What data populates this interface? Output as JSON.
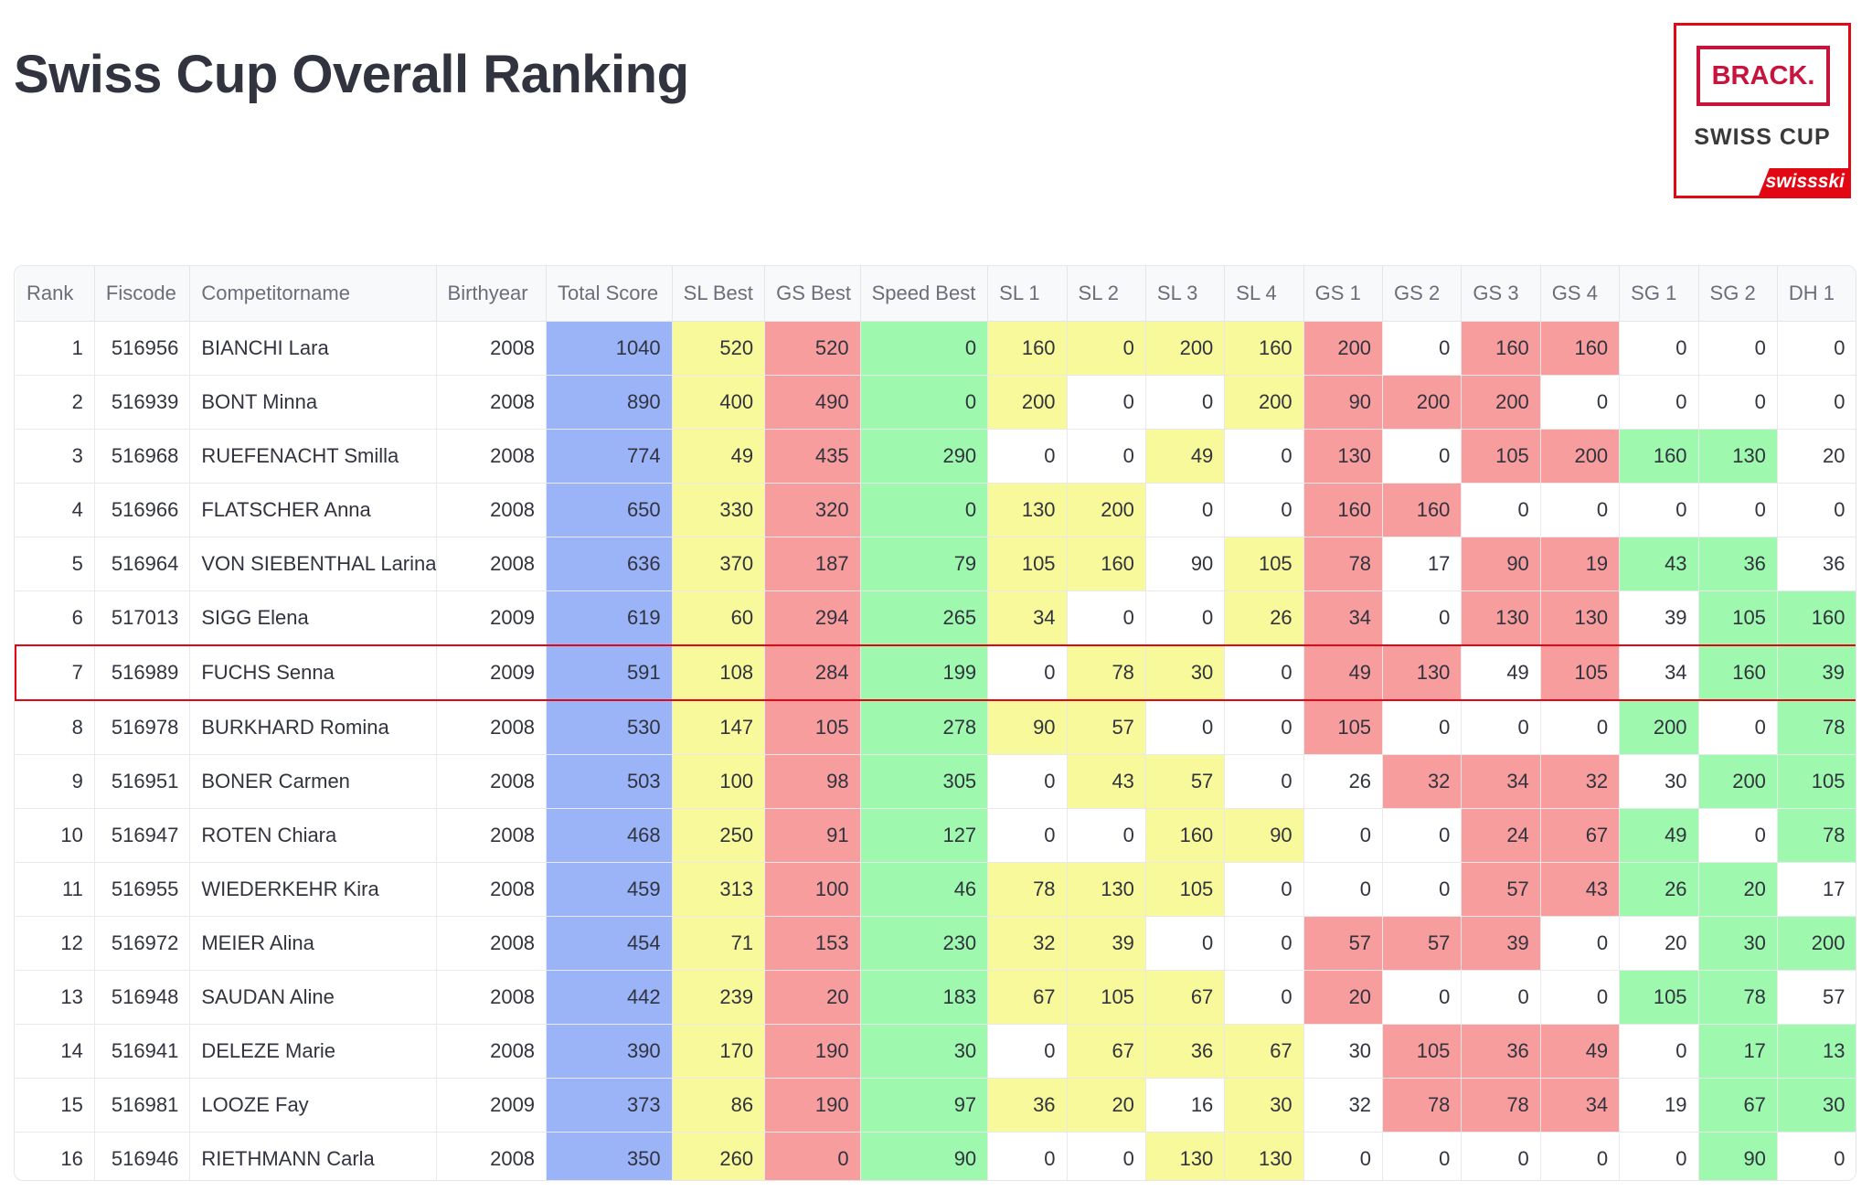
{
  "title": "Swiss Cup Overall Ranking",
  "logo": {
    "brand": "BRACK.",
    "name": "SWISS CUP",
    "sponsor": "swissski",
    "colors": {
      "red": "#e30613",
      "brack": "#c8143c"
    }
  },
  "colors": {
    "total": "#9bb3f7",
    "sl": "#f8f99a",
    "gs": "#f89d9d",
    "speed": "#9ef8ae",
    "selected_border": "#e30613"
  },
  "columns": [
    "Rank",
    "Fiscode",
    "Competitorname",
    "Birthyear",
    "Total Score",
    "SL Best",
    "GS Best",
    "Speed Best",
    "SL 1",
    "SL 2",
    "SL 3",
    "SL 4",
    "GS 1",
    "GS 2",
    "GS 3",
    "GS 4",
    "SG 1",
    "SG 2",
    "DH 1"
  ],
  "selected_rank": 7,
  "rows": [
    {
      "v": [
        1,
        "516956",
        "BIANCHI Lara",
        2008,
        1040,
        520,
        520,
        0,
        160,
        0,
        200,
        160,
        200,
        0,
        160,
        160,
        0,
        0,
        0
      ],
      "hl": "yyyyrwrrwww"
    },
    {
      "v": [
        2,
        "516939",
        "BONT Minna",
        2008,
        890,
        400,
        490,
        0,
        200,
        0,
        0,
        200,
        90,
        200,
        200,
        0,
        0,
        0,
        0
      ],
      "hl": "ywwyrrrwwww"
    },
    {
      "v": [
        3,
        "516968",
        "RUEFENACHT Smilla",
        2008,
        774,
        49,
        435,
        290,
        0,
        0,
        49,
        0,
        130,
        0,
        105,
        200,
        160,
        130,
        20
      ],
      "hl": "wwywrwrrggw"
    },
    {
      "v": [
        4,
        "516966",
        "FLATSCHER Anna",
        2008,
        650,
        330,
        320,
        0,
        130,
        200,
        0,
        0,
        160,
        160,
        0,
        0,
        0,
        0,
        0
      ],
      "hl": "yywwrrwwwww"
    },
    {
      "v": [
        5,
        "516964",
        "VON SIEBENTHAL Larina",
        2008,
        636,
        370,
        187,
        79,
        105,
        160,
        90,
        105,
        78,
        17,
        90,
        19,
        43,
        36,
        36
      ],
      "hl": "yywyrwrrggw"
    },
    {
      "v": [
        6,
        "517013",
        "SIGG Elena",
        2009,
        619,
        60,
        294,
        265,
        34,
        0,
        0,
        26,
        34,
        0,
        130,
        130,
        39,
        105,
        160
      ],
      "hl": "ywwyrwrrwgg"
    },
    {
      "v": [
        7,
        "516989",
        "FUCHS Senna",
        2009,
        591,
        108,
        284,
        199,
        0,
        78,
        30,
        0,
        49,
        130,
        49,
        105,
        34,
        160,
        39
      ],
      "hl": "wyywrrwrwgg"
    },
    {
      "v": [
        8,
        "516978",
        "BURKHARD Romina",
        2008,
        530,
        147,
        105,
        278,
        90,
        57,
        0,
        0,
        105,
        0,
        0,
        0,
        200,
        0,
        78
      ],
      "hl": "yywwrwwwgwg"
    },
    {
      "v": [
        9,
        "516951",
        "BONER Carmen",
        2008,
        503,
        100,
        98,
        305,
        0,
        43,
        57,
        0,
        26,
        32,
        34,
        32,
        30,
        200,
        105
      ],
      "hl": "wyywwrrrwgg"
    },
    {
      "v": [
        10,
        "516947",
        "ROTEN Chiara",
        2008,
        468,
        250,
        91,
        127,
        0,
        0,
        160,
        90,
        0,
        0,
        24,
        67,
        49,
        0,
        78
      ],
      "hl": "wwyywwrrgwg"
    },
    {
      "v": [
        11,
        "516955",
        "WIEDERKEHR Kira",
        2008,
        459,
        313,
        100,
        46,
        78,
        130,
        105,
        0,
        0,
        0,
        57,
        43,
        26,
        20,
        17
      ],
      "hl": "yyywwwrrggw"
    },
    {
      "v": [
        12,
        "516972",
        "MEIER Alina",
        2008,
        454,
        71,
        153,
        230,
        32,
        39,
        0,
        0,
        57,
        57,
        39,
        0,
        20,
        30,
        200
      ],
      "hl": "yywwrrrwwgg"
    },
    {
      "v": [
        13,
        "516948",
        "SAUDAN Aline",
        2008,
        442,
        239,
        20,
        183,
        67,
        105,
        67,
        0,
        20,
        0,
        0,
        0,
        105,
        78,
        57
      ],
      "hl": "yyywrwwwggw"
    },
    {
      "v": [
        14,
        "516941",
        "DELEZE Marie",
        2008,
        390,
        170,
        190,
        30,
        0,
        67,
        36,
        67,
        30,
        105,
        36,
        49,
        0,
        17,
        13
      ],
      "hl": "wyyywrrrwgg"
    },
    {
      "v": [
        15,
        "516981",
        "LOOZE Fay",
        2009,
        373,
        86,
        190,
        97,
        36,
        20,
        16,
        30,
        32,
        78,
        78,
        34,
        19,
        67,
        30
      ],
      "hl": "yywywrrrwgg"
    },
    {
      "v": [
        16,
        "516946",
        "RIETHMANN Carla",
        2008,
        350,
        260,
        0,
        90,
        0,
        0,
        130,
        130,
        0,
        0,
        0,
        0,
        0,
        90,
        0
      ],
      "hl": "wwyywwwwwgw"
    }
  ],
  "partial_row_hl": "yywwrrwrggw"
}
